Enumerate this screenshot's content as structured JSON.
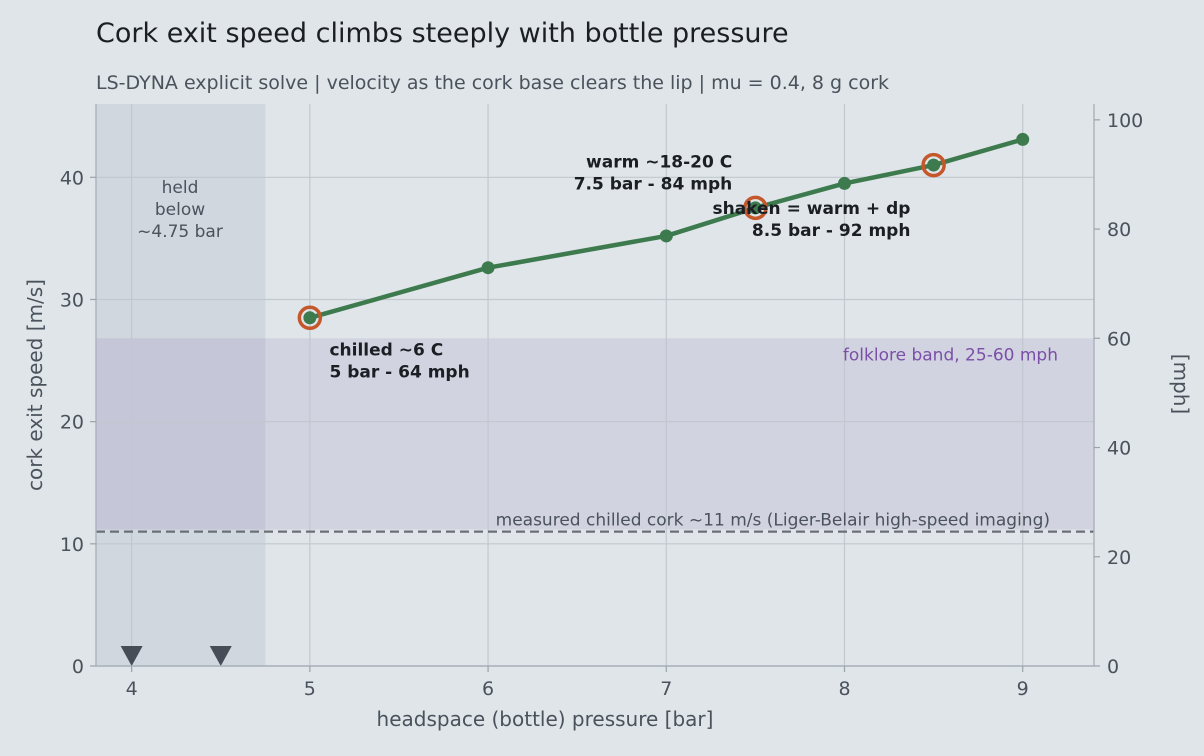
{
  "chart_data": {
    "type": "line",
    "title": "Cork exit speed climbs steeply with bottle pressure",
    "subtitle": "LS-DYNA explicit solve  |  velocity as the cork base clears the lip  |  mu = 0.4, 8 g cork",
    "xlabel": "headspace (bottle) pressure  [bar]",
    "ylabel": "cork exit speed  [m/s]",
    "y2label": "[mph]",
    "xlim": [
      3.8,
      9.4
    ],
    "ylim": [
      0,
      46
    ],
    "y2lim": [
      0,
      102.9
    ],
    "x_ticks": [
      4,
      5,
      6,
      7,
      8,
      9
    ],
    "y_ticks": [
      0,
      10,
      20,
      30,
      40
    ],
    "y2_ticks": [
      0,
      20,
      40,
      60,
      80,
      100
    ],
    "grid": true,
    "series": [
      {
        "x": [
          5,
          6,
          7,
          7.5,
          8,
          8.5,
          9
        ],
        "values": [
          28.5,
          32.6,
          35.2,
          37.5,
          39.5,
          41.0,
          43.1
        ],
        "color": "#3d7a4e"
      }
    ],
    "highlighted_points": [
      {
        "x": 5,
        "y": 28.5
      },
      {
        "x": 7.5,
        "y": 37.5
      },
      {
        "x": 8.5,
        "y": 41.0
      }
    ],
    "highlight_color": "#c4582a",
    "held_region": {
      "x_from": 3.8,
      "x_to": 4.75,
      "label": [
        "held",
        "below",
        "~4.75 bar"
      ]
    },
    "held_markers": [
      {
        "x": 4,
        "y": 0
      },
      {
        "x": 4.5,
        "y": 0
      }
    ],
    "folklore_band": {
      "y_from_mph": 25,
      "y_to_mph": 60,
      "label": "folklore band, 25-60 mph",
      "color": "#7b4fa8"
    },
    "reference_line": {
      "y": 11,
      "label": "measured chilled cork ~11 m/s (Liger-Belair high-speed imaging)"
    },
    "annotations": [
      {
        "lines": [
          "chilled ~6 C",
          "5 bar - 64 mph"
        ],
        "x": 5.11,
        "y": 25.4,
        "anchor": "start"
      },
      {
        "lines": [
          "warm ~18-20 C",
          "7.5 bar - 84 mph"
        ],
        "x": 7.37,
        "y": 40.8,
        "anchor": "end"
      },
      {
        "lines": [
          "shaken = warm + dp",
          "8.5 bar - 92 mph"
        ],
        "x": 8.37,
        "y": 37.0,
        "anchor": "end"
      }
    ]
  }
}
